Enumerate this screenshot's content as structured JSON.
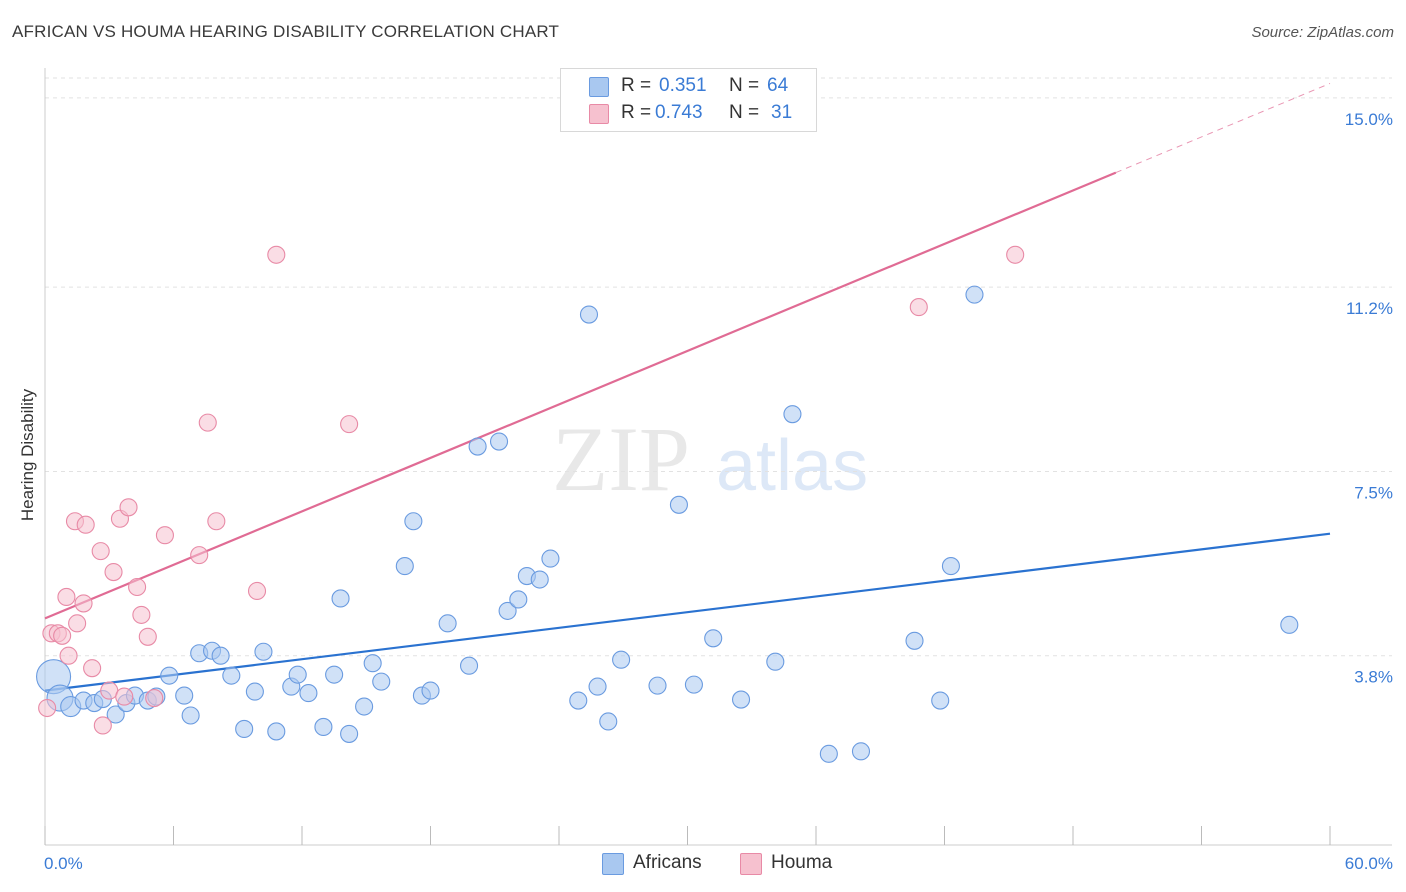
{
  "title": "AFRICAN VS HOUMA HEARING DISABILITY CORRELATION CHART",
  "source": "Source: ZipAtlas.com",
  "watermark": {
    "zip": "ZIP",
    "atlas": "atlas"
  },
  "legend": {
    "r_label": "R =",
    "n_label": "N =",
    "rows": [
      {
        "r": "0.351",
        "n": "64"
      },
      {
        "r": "0.743",
        "n": "31"
      }
    ]
  },
  "colors": {
    "africans_fill": "#a9c8f0",
    "africans_stroke": "#6a9be0",
    "africans_line": "#2a72d0",
    "houma_fill": "#f6c1cf",
    "houma_stroke": "#e88aa6",
    "houma_line": "#e06b94",
    "tick_text": "#3a7bd5",
    "grid": "#e2e2e2"
  },
  "chart_data": {
    "type": "scatter",
    "title": "AFRICAN VS HOUMA HEARING DISABILITY CORRELATION CHART",
    "xlabel": "",
    "ylabel": "Hearing Disability",
    "xlim": [
      0,
      60
    ],
    "ylim": [
      0,
      15.6
    ],
    "x_tick_labels": [
      "0.0%",
      "60.0%"
    ],
    "y_ticks": [
      3.8,
      7.5,
      11.2,
      15.0
    ],
    "y_tick_labels": [
      "3.8%",
      "7.5%",
      "11.2%",
      "15.0%"
    ],
    "grid": "horizontal dashed",
    "legend_position": "top-center and bottom",
    "series": [
      {
        "name": "Africans",
        "color": "#a9c8f0",
        "points": [
          [
            0.4,
            3.38
          ],
          [
            0.7,
            2.95
          ],
          [
            1.2,
            2.78
          ],
          [
            1.8,
            2.9
          ],
          [
            2.3,
            2.85
          ],
          [
            2.7,
            2.93
          ],
          [
            3.3,
            2.62
          ],
          [
            3.8,
            2.85
          ],
          [
            4.2,
            3.0
          ],
          [
            4.8,
            2.9
          ],
          [
            5.2,
            2.98
          ],
          [
            5.8,
            3.4
          ],
          [
            6.5,
            3.0
          ],
          [
            6.8,
            2.6
          ],
          [
            7.2,
            3.85
          ],
          [
            7.8,
            3.9
          ],
          [
            8.2,
            3.8
          ],
          [
            8.7,
            3.4
          ],
          [
            9.3,
            2.33
          ],
          [
            9.8,
            3.08
          ],
          [
            10.2,
            3.88
          ],
          [
            10.8,
            2.28
          ],
          [
            11.5,
            3.18
          ],
          [
            11.8,
            3.42
          ],
          [
            12.3,
            3.05
          ],
          [
            13.0,
            2.37
          ],
          [
            13.5,
            3.42
          ],
          [
            13.8,
            4.95
          ],
          [
            14.2,
            2.23
          ],
          [
            14.9,
            2.78
          ],
          [
            15.3,
            3.65
          ],
          [
            15.7,
            3.28
          ],
          [
            16.8,
            5.6
          ],
          [
            17.2,
            6.5
          ],
          [
            17.6,
            3.0
          ],
          [
            18.0,
            3.1
          ],
          [
            18.8,
            4.45
          ],
          [
            19.8,
            3.6
          ],
          [
            20.2,
            8.0
          ],
          [
            21.2,
            8.1
          ],
          [
            21.6,
            4.7
          ],
          [
            22.1,
            4.93
          ],
          [
            22.5,
            5.4
          ],
          [
            23.1,
            5.33
          ],
          [
            23.6,
            5.75
          ],
          [
            24.9,
            2.9
          ],
          [
            25.4,
            10.65
          ],
          [
            25.8,
            3.18
          ],
          [
            26.3,
            2.48
          ],
          [
            26.9,
            3.72
          ],
          [
            28.6,
            3.2
          ],
          [
            29.6,
            6.83
          ],
          [
            30.3,
            3.22
          ],
          [
            31.2,
            4.15
          ],
          [
            32.5,
            2.92
          ],
          [
            34.1,
            3.68
          ],
          [
            34.9,
            8.65
          ],
          [
            36.6,
            1.83
          ],
          [
            38.1,
            1.88
          ],
          [
            40.6,
            4.1
          ],
          [
            41.8,
            2.9
          ],
          [
            42.3,
            5.6
          ],
          [
            43.4,
            11.05
          ],
          [
            58.1,
            4.42
          ]
        ]
      },
      {
        "name": "Houma",
        "color": "#f6c1cf",
        "points": [
          [
            0.1,
            2.75
          ],
          [
            0.3,
            4.25
          ],
          [
            0.6,
            4.25
          ],
          [
            0.8,
            4.2
          ],
          [
            1.0,
            4.98
          ],
          [
            1.1,
            3.8
          ],
          [
            1.4,
            6.5
          ],
          [
            1.5,
            4.45
          ],
          [
            1.8,
            4.85
          ],
          [
            1.9,
            6.43
          ],
          [
            2.2,
            3.55
          ],
          [
            2.6,
            5.9
          ],
          [
            2.7,
            2.4
          ],
          [
            3.0,
            3.1
          ],
          [
            3.2,
            5.48
          ],
          [
            3.5,
            6.55
          ],
          [
            3.7,
            2.98
          ],
          [
            3.9,
            6.78
          ],
          [
            4.3,
            5.18
          ],
          [
            4.5,
            4.62
          ],
          [
            4.8,
            4.18
          ],
          [
            5.1,
            2.95
          ],
          [
            5.6,
            6.22
          ],
          [
            7.2,
            5.82
          ],
          [
            7.6,
            8.48
          ],
          [
            8.0,
            6.5
          ],
          [
            9.9,
            5.1
          ],
          [
            10.8,
            11.85
          ],
          [
            14.2,
            8.45
          ],
          [
            40.8,
            10.8
          ],
          [
            45.3,
            11.85
          ]
        ]
      }
    ],
    "trend_lines": [
      {
        "name": "Africans",
        "x": [
          0,
          60
        ],
        "y": [
          3.1,
          6.25
        ],
        "style": "solid"
      },
      {
        "name": "Houma",
        "x": [
          0,
          50
        ],
        "y": [
          4.55,
          13.5
        ],
        "style": "solid",
        "dashed_extension_to_x": 60
      }
    ]
  }
}
